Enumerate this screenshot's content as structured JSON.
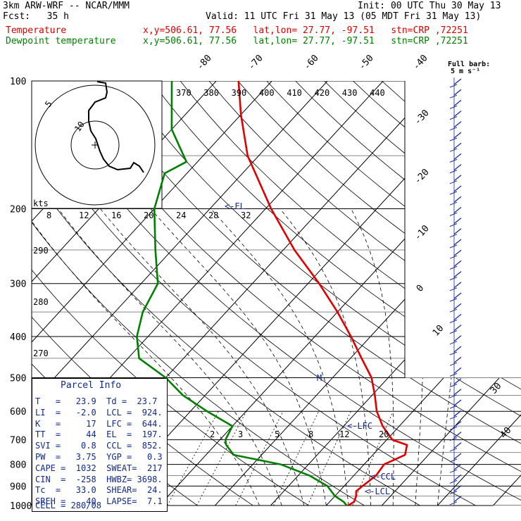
{
  "header": {
    "model": "3km ARW-WRF -- NCAR/MMM",
    "init": "Init: 00 UTC Thu 30 May 13",
    "fcst": "Fcst:   35 h",
    "valid": "Valid: 11 UTC Fri 31 May 13 (05 MDT Fri 31 May 13)",
    "temp_label": "Temperature",
    "dew_label": "Dewpoint temperature",
    "temp_info": "x,y=506.61, 77.56   lat,lon= 27.77, -97.51   stn=CRP ,72251",
    "dew_info": "x,y=506.61, 77.56   lat,lon= 27.77, -97.51   stn=CRP ,72251",
    "temp_color": "#e00000",
    "dew_color": "#008000"
  },
  "wind_panel": {
    "title": "Full barb:",
    "unit": "5 m s⁻¹"
  },
  "chart_data": {
    "type": "line",
    "yscale": "log",
    "ylim": [
      1000,
      100
    ],
    "pressure_labels": [
      "100",
      "200",
      "300",
      "400",
      "500",
      "600",
      "700",
      "800",
      "900",
      "1000"
    ],
    "isotherm_labels": [
      "-80",
      "-70",
      "-60",
      "-50",
      "-40",
      "-30",
      "-20",
      "-10",
      "0",
      "10",
      "20",
      "30",
      "40"
    ],
    "theta_labels": [
      "370",
      "380",
      "390",
      "400",
      "410",
      "420",
      "430",
      "440"
    ],
    "wind_speed_labels": [
      "8",
      "12",
      "16",
      "20",
      "24",
      "28",
      "32"
    ],
    "wind_speed_unit": "kts",
    "theta_left_labels": [
      "290",
      "280",
      "270"
    ],
    "mixing_ratio_labels": [
      "2",
      "3",
      "5",
      "8",
      "12",
      "20"
    ],
    "level_markers": [
      "<-EL",
      "M",
      "<-LFC",
      "<-CCL",
      "<-LCL"
    ],
    "hodograph_labels": [
      "5",
      "10"
    ],
    "series": [
      {
        "name": "Temperature",
        "color": "#e00000",
        "points": [
          [
            1000,
            23.9
          ],
          [
            980,
            24.4
          ],
          [
            950,
            23.8
          ],
          [
            925,
            23.0
          ],
          [
            900,
            23.3
          ],
          [
            850,
            24.0
          ],
          [
            800,
            23.6
          ],
          [
            760,
            25.8
          ],
          [
            720,
            24.5
          ],
          [
            700,
            21.0
          ],
          [
            650,
            17.0
          ],
          [
            600,
            13.5
          ],
          [
            550,
            10.5
          ],
          [
            500,
            7.0
          ],
          [
            450,
            2.0
          ],
          [
            400,
            -3.5
          ],
          [
            350,
            -10.0
          ],
          [
            300,
            -18.0
          ],
          [
            250,
            -28.0
          ],
          [
            200,
            -39.0
          ],
          [
            150,
            -52.0
          ],
          [
            120,
            -60.0
          ],
          [
            100,
            -66.0
          ]
        ]
      },
      {
        "name": "Dewpoint temperature",
        "color": "#008000",
        "points": [
          [
            1000,
            23.7
          ],
          [
            980,
            22.5
          ],
          [
            950,
            20.0
          ],
          [
            900,
            17.0
          ],
          [
            850,
            12.0
          ],
          [
            800,
            5.0
          ],
          [
            760,
            -5.0
          ],
          [
            720,
            -8.0
          ],
          [
            700,
            -9.0
          ],
          [
            650,
            -10.0
          ],
          [
            600,
            -17.0
          ],
          [
            550,
            -24.0
          ],
          [
            500,
            -30.0
          ],
          [
            450,
            -38.0
          ],
          [
            400,
            -42.0
          ],
          [
            350,
            -45.0
          ],
          [
            300,
            -47.0
          ],
          [
            250,
            -53.0
          ],
          [
            200,
            -60.0
          ],
          [
            165,
            -64.0
          ],
          [
            155,
            -62.0
          ],
          [
            130,
            -70.0
          ],
          [
            100,
            -78.0
          ]
        ]
      }
    ]
  },
  "parcel_info": {
    "title": "Parcel Info",
    "rows": [
      "T   =   23.9  Td =  23.7",
      "LI  =   -2.0  LCL =  924.",
      "K   =     17  LFC =  644.",
      "TT  =     44  EL  =  197.",
      "SVI =    0.8  CCL =  852.",
      "PW  =   3.75  YGP =   0.3",
      "CAPE =  1032  SWEAT=  217",
      "CIN  =  -258  HWBZ= 3698.",
      "Tc  =   33.0  SHEAR=  24.",
      "SREH =    40  LAPSE=  7.1"
    ],
    "cell": "CELL = 280/08"
  }
}
